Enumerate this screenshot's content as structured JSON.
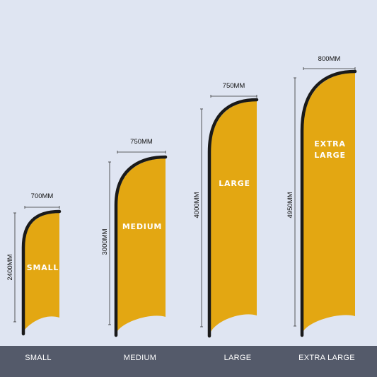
{
  "flags": [
    {
      "id": "small",
      "width_label": "700MM",
      "height_label": "2400MM",
      "flag_lines": [
        "SMALL"
      ],
      "footer_label": "SMALL"
    },
    {
      "id": "medium",
      "width_label": "750MM",
      "height_label": "3000MM",
      "flag_lines": [
        "MEDIUM"
      ],
      "footer_label": "MEDIUM"
    },
    {
      "id": "large",
      "width_label": "750MM",
      "height_label": "4000MM",
      "flag_lines": [
        "LARGE"
      ],
      "footer_label": "LARGE"
    },
    {
      "id": "extra-large",
      "width_label": "800MM",
      "height_label": "4950MM",
      "flag_lines": [
        "EXTRA",
        "LARGE"
      ],
      "footer_label": "EXTRA LARGE"
    }
  ],
  "colors": {
    "background": "#dfe5f2",
    "flag_fill": "#e3a712",
    "pole": "#1a1a1a",
    "footer_bar": "#545a6a",
    "footer_text": "#ffffff"
  }
}
